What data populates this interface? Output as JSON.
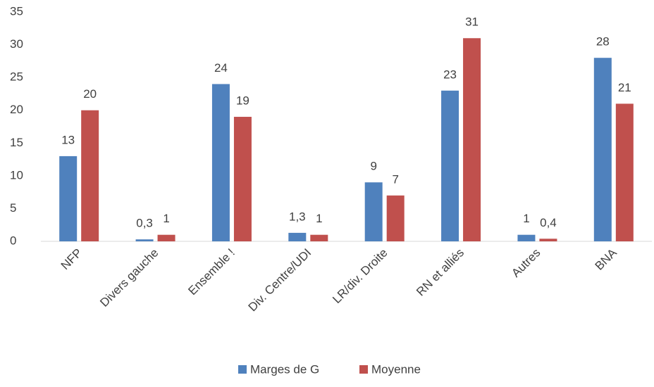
{
  "chart_data": {
    "type": "bar",
    "categories": [
      "NFP",
      "Divers gauche",
      "Ensemble !",
      "Div. Centre/UDI",
      "LR/div. Droite",
      "RN et alliés",
      "Autres",
      "BNA"
    ],
    "series": [
      {
        "name": "Marges de G",
        "color": "#4f81bd",
        "values": [
          13,
          0.3,
          24,
          1.3,
          9,
          23,
          1,
          28
        ],
        "value_labels": [
          "13",
          "0,3",
          "24",
          "1,3",
          "9",
          "23",
          "1",
          "28"
        ]
      },
      {
        "name": "Moyenne",
        "color": "#c0504d",
        "values": [
          20,
          1,
          19,
          1,
          7,
          31,
          0.4,
          21
        ],
        "value_labels": [
          "20",
          "1",
          "19",
          "1",
          "7",
          "31",
          "0,4",
          "21"
        ]
      }
    ],
    "ylim": [
      0,
      35
    ],
    "yticks": [
      0,
      5,
      10,
      15,
      20,
      25,
      30,
      35
    ],
    "grid": false,
    "legend": "bottom"
  }
}
